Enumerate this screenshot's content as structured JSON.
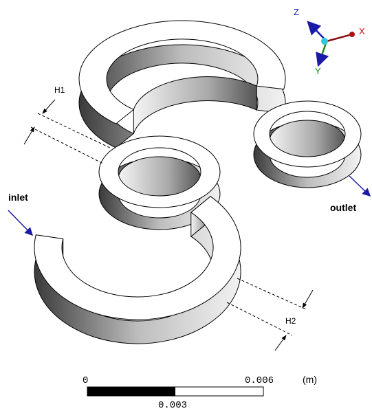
{
  "axes": {
    "z": "Z",
    "x": "X",
    "y": "Y"
  },
  "dimensions": {
    "h1": "H1",
    "h2": "H2"
  },
  "boundaries": {
    "inlet": "inlet",
    "outlet": "outlet"
  },
  "scale_bar": {
    "start": "0",
    "end": "0.006",
    "unit": "(m)",
    "mid": "0.003"
  }
}
